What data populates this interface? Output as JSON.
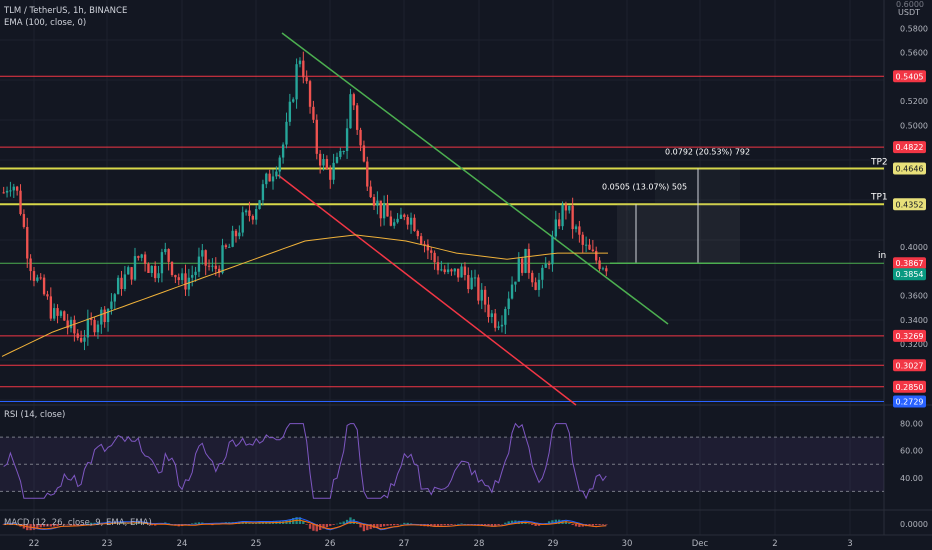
{
  "header": {
    "title": "TLM / TetherUS, 1h, BINANCE",
    "ema_legend": "EMA (100, close, 0)",
    "rsi_legend": "RSI (14, close)",
    "macd_legend": "MACD (12, 26, close, 9, EMA, EMA)",
    "unit": "USDT",
    "top_cut_label": "0.6000"
  },
  "colors": {
    "background": "#131722",
    "candle_up": "#26a69a",
    "candle_down": "#ef5350",
    "red_line": "#f23645",
    "yellow_line": "#d8d84a",
    "green_line": "#4caf50",
    "ema": "#f0b23a",
    "rsi": "#7e57c2",
    "blue_line": "#2962ff"
  },
  "price_axis": {
    "ticks": [
      "0.5800",
      "0.5600",
      "0.5200",
      "0.5000",
      "0.4000",
      "0.3600",
      "0.3400",
      "0.3200"
    ],
    "tags": [
      {
        "label": "0.5405",
        "kind": "red"
      },
      {
        "label": "0.4822",
        "kind": "red"
      },
      {
        "label": "0.4646",
        "kind": "yellow"
      },
      {
        "label": "0.4352",
        "kind": "yellow"
      },
      {
        "label": "0.3867",
        "kind": "red"
      },
      {
        "label": "0.3854",
        "kind": "green"
      },
      {
        "label": "0.3269",
        "kind": "red"
      },
      {
        "label": "0.3027",
        "kind": "red"
      },
      {
        "label": "0.2850",
        "kind": "red"
      },
      {
        "label": "0.2729",
        "kind": "blue"
      }
    ]
  },
  "chart_labels": {
    "tp2": "TP2",
    "tp1": "TP1",
    "entry": "in"
  },
  "measurements": [
    {
      "text": "0.0792 (20.53%) 792"
    },
    {
      "text": "0.0505 (13.07%) 505"
    }
  ],
  "rsi_axis": {
    "ticks": [
      "80.00",
      "60.00",
      "40.00"
    ]
  },
  "macd_axis": {
    "ticks": [
      "0.0000"
    ]
  },
  "time_axis": {
    "ticks": [
      "22",
      "23",
      "24",
      "25",
      "26",
      "27",
      "28",
      "29",
      "30",
      "Dec",
      "2",
      "3"
    ]
  },
  "chart_data": {
    "type": "candlestick",
    "symbol": "TLM / TetherUS",
    "interval": "1h",
    "exchange": "BINANCE",
    "price_range": [
      0.27,
      0.6
    ],
    "horizontal_levels": [
      0.5405,
      0.4822,
      0.4646,
      0.4352,
      0.3867,
      0.3854,
      0.3269,
      0.3027,
      0.285,
      0.2729
    ],
    "rsi_levels": [
      70,
      50,
      30
    ],
    "closes": [
      0.445,
      0.455,
      0.45,
      0.43,
      0.4,
      0.38,
      0.37,
      0.36,
      0.35,
      0.34,
      0.345,
      0.335,
      0.33,
      0.325,
      0.33,
      0.335,
      0.34,
      0.345,
      0.35,
      0.36,
      0.37,
      0.375,
      0.38,
      0.39,
      0.395,
      0.385,
      0.38,
      0.39,
      0.395,
      0.385,
      0.375,
      0.37,
      0.375,
      0.38,
      0.39,
      0.385,
      0.38,
      0.385,
      0.395,
      0.4,
      0.41,
      0.42,
      0.425,
      0.43,
      0.44,
      0.45,
      0.46,
      0.47,
      0.48,
      0.5,
      0.53,
      0.56,
      0.54,
      0.51,
      0.48,
      0.47,
      0.46,
      0.465,
      0.47,
      0.49,
      0.53,
      0.5,
      0.47,
      0.455,
      0.44,
      0.43,
      0.425,
      0.42,
      0.415,
      0.43,
      0.425,
      0.42,
      0.41,
      0.4,
      0.39,
      0.385,
      0.38,
      0.375,
      0.378,
      0.38,
      0.375,
      0.37,
      0.36,
      0.355,
      0.345,
      0.34,
      0.345,
      0.36,
      0.375,
      0.385,
      0.39,
      0.38,
      0.37,
      0.375,
      0.39,
      0.41,
      0.425,
      0.435,
      0.42,
      0.41,
      0.4,
      0.395,
      0.39,
      0.388,
      0.386
    ],
    "ema": [
      0.31,
      0.33,
      0.345,
      0.36,
      0.375,
      0.39,
      0.405,
      0.41,
      0.405,
      0.395,
      0.39,
      0.395,
      0.395
    ]
  }
}
